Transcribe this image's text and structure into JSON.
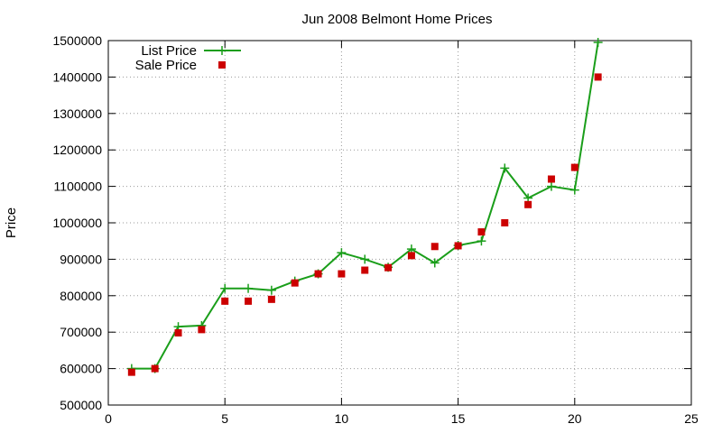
{
  "chart_data": {
    "type": "line",
    "title": "Jun 2008 Belmont Home Prices",
    "xlabel": "",
    "ylabel": "Price",
    "xlim": [
      0,
      25
    ],
    "ylim": [
      500000,
      1500000
    ],
    "x_ticks": [
      0,
      5,
      10,
      15,
      20,
      25
    ],
    "y_ticks": [
      500000,
      600000,
      700000,
      800000,
      900000,
      1000000,
      1100000,
      1200000,
      1300000,
      1400000,
      1500000
    ],
    "grid": true,
    "legend_position": "top-left",
    "series": [
      {
        "name": "List Price",
        "style": "line-with-plus-markers",
        "color": "#1a9e1a",
        "x": [
          1,
          2,
          3,
          4,
          5,
          6,
          7,
          8,
          9,
          10,
          11,
          12,
          13,
          14,
          15,
          16,
          17,
          18,
          19,
          20,
          21
        ],
        "values": [
          600000,
          600000,
          715000,
          718000,
          820000,
          820000,
          815000,
          840000,
          860000,
          918000,
          900000,
          878000,
          928000,
          890000,
          938000,
          950000,
          1150000,
          1068000,
          1100000,
          1090000,
          1495000
        ]
      },
      {
        "name": "Sale Price",
        "style": "square-markers",
        "color": "#cc0000",
        "x": [
          1,
          2,
          3,
          4,
          5,
          6,
          7,
          8,
          9,
          10,
          11,
          12,
          13,
          14,
          15,
          16,
          17,
          18,
          19,
          20,
          21
        ],
        "values": [
          590000,
          600000,
          698000,
          707000,
          785000,
          785000,
          790000,
          835000,
          860000,
          860000,
          870000,
          877000,
          910000,
          935000,
          937000,
          975000,
          1000000,
          1050000,
          1120000,
          1152000,
          1400000
        ]
      }
    ]
  }
}
